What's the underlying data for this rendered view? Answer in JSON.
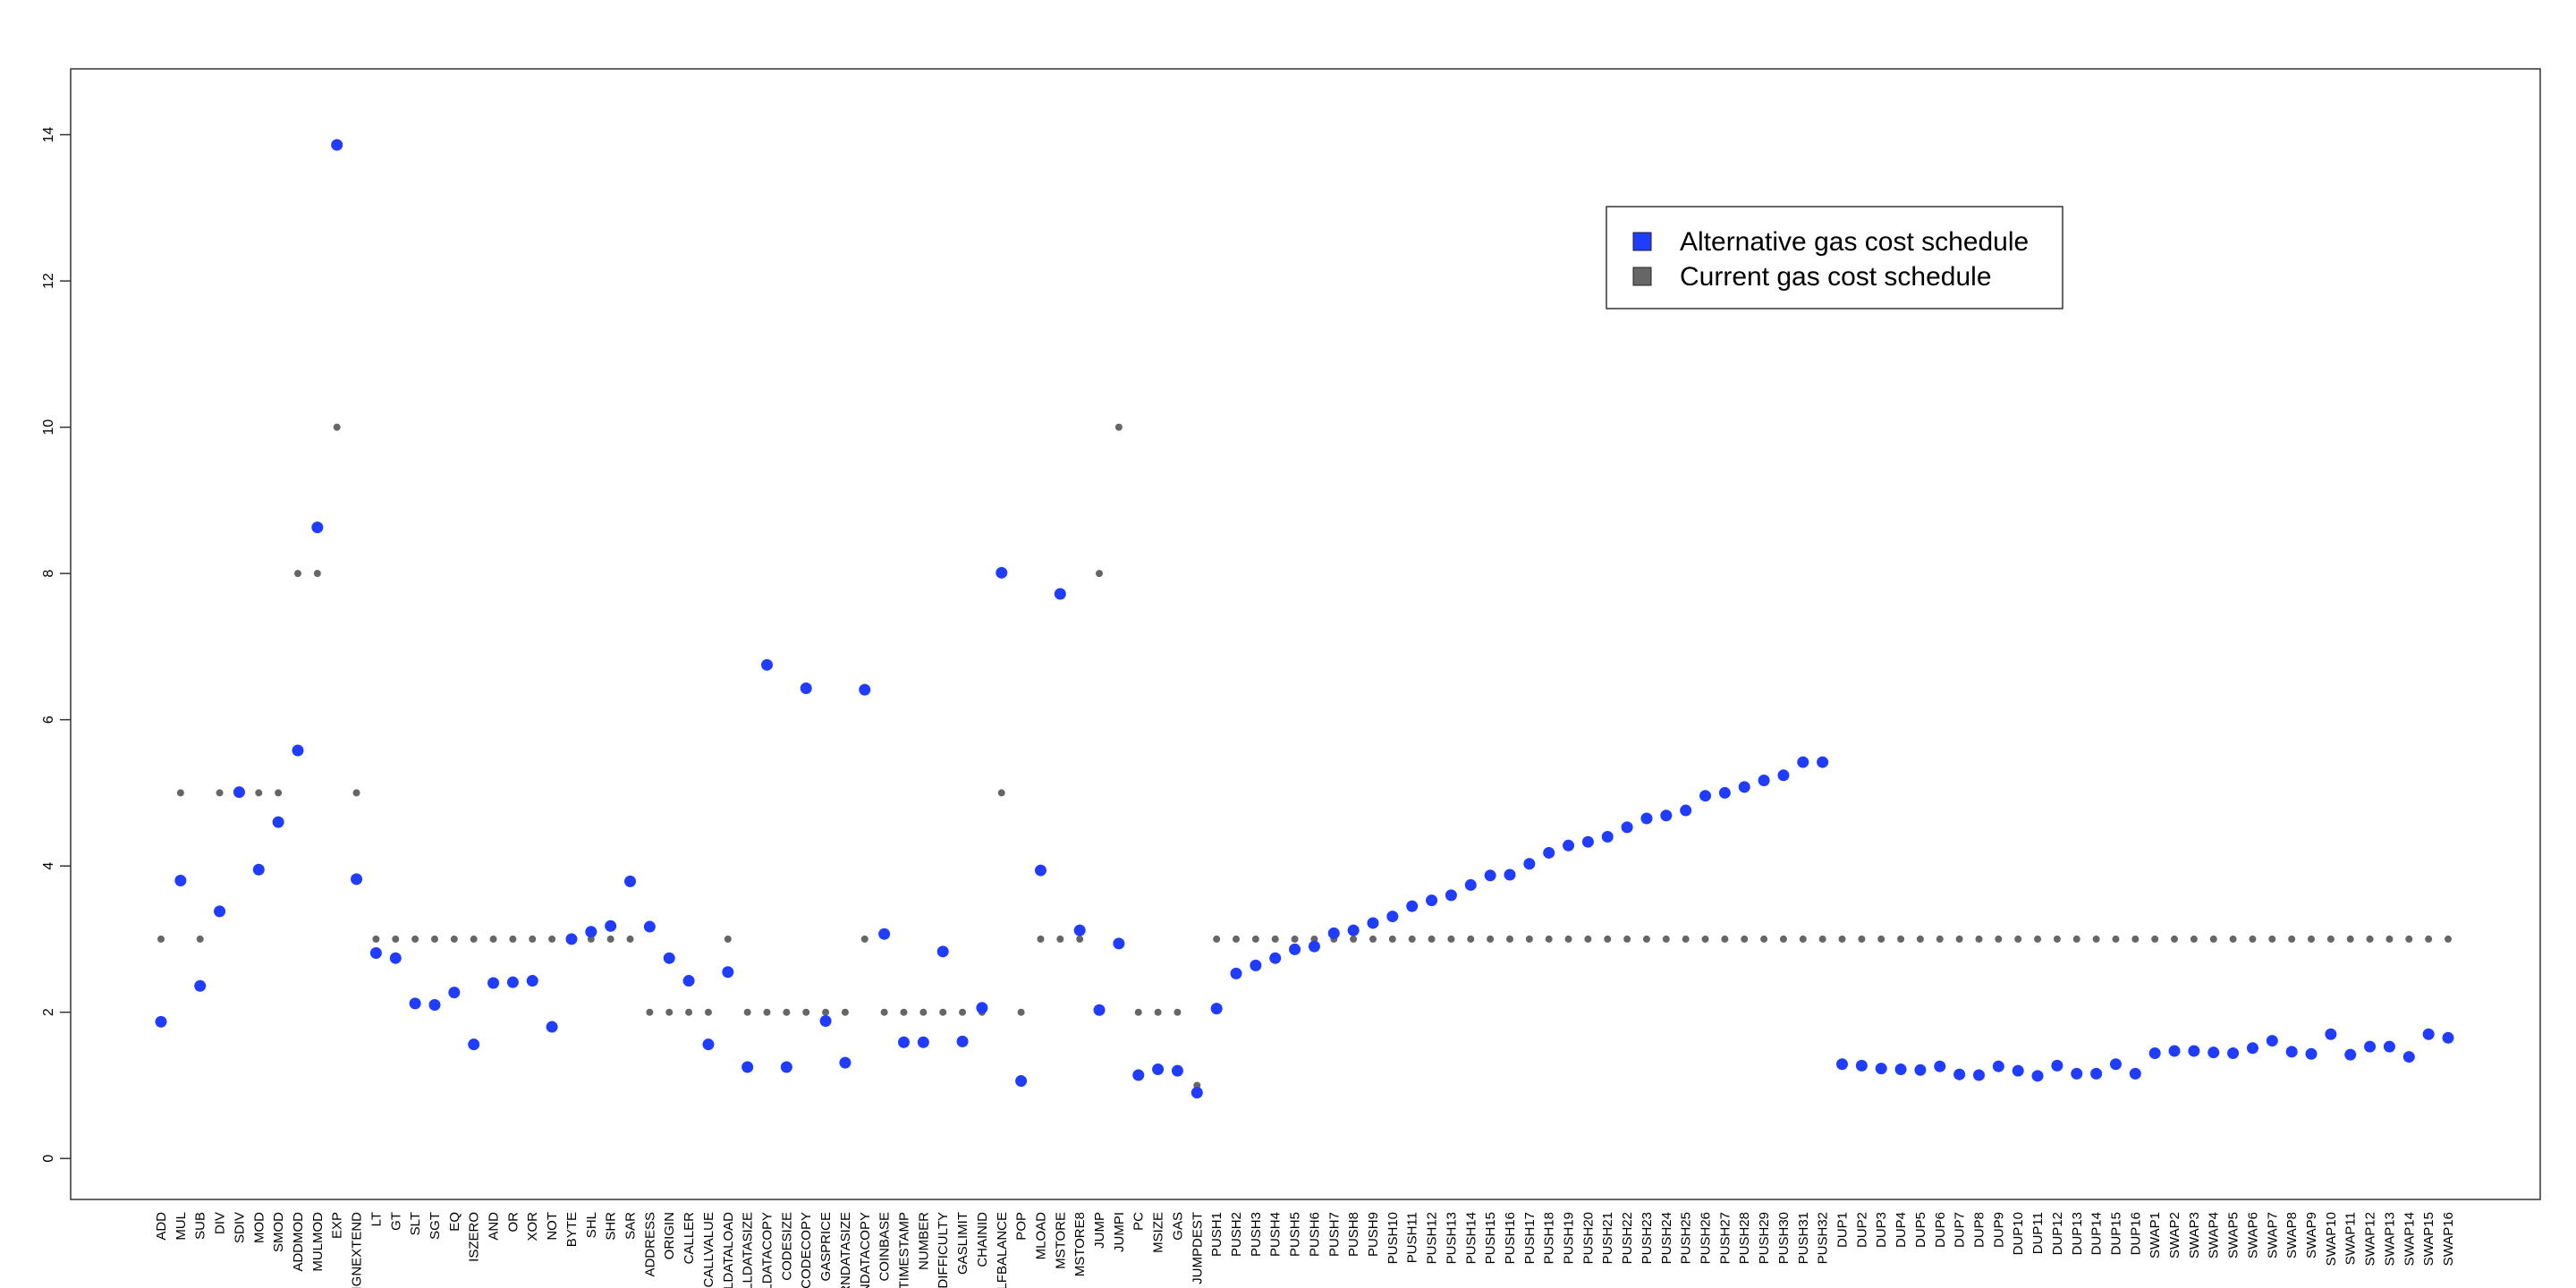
{
  "chart_data": {
    "type": "scatter",
    "categories": [
      "ADD",
      "MUL",
      "SUB",
      "DIV",
      "SDIV",
      "MOD",
      "SMOD",
      "ADDMOD",
      "MULMOD",
      "EXP",
      "SIGNEXTEND",
      "LT",
      "GT",
      "SLT",
      "SGT",
      "EQ",
      "ISZERO",
      "AND",
      "OR",
      "XOR",
      "NOT",
      "BYTE",
      "SHL",
      "SHR",
      "SAR",
      "ADDRESS",
      "ORIGIN",
      "CALLER",
      "CALLVALUE",
      "CALLDATALOAD",
      "CALLDATASIZE",
      "CALLDATACOPY",
      "CODESIZE",
      "CODECOPY",
      "GASPRICE",
      "RETURNDATASIZE",
      "RETURNDATACOPY",
      "COINBASE",
      "TIMESTAMP",
      "NUMBER",
      "DIFFICULTY",
      "GASLIMIT",
      "CHAINID",
      "SELFBALANCE",
      "POP",
      "MLOAD",
      "MSTORE",
      "MSTORE8",
      "JUMP",
      "JUMPI",
      "PC",
      "MSIZE",
      "GAS",
      "JUMPDEST",
      "PUSH1",
      "PUSH2",
      "PUSH3",
      "PUSH4",
      "PUSH5",
      "PUSH6",
      "PUSH7",
      "PUSH8",
      "PUSH9",
      "PUSH10",
      "PUSH11",
      "PUSH12",
      "PUSH13",
      "PUSH14",
      "PUSH15",
      "PUSH16",
      "PUSH17",
      "PUSH18",
      "PUSH19",
      "PUSH20",
      "PUSH21",
      "PUSH22",
      "PUSH23",
      "PUSH24",
      "PUSH25",
      "PUSH26",
      "PUSH27",
      "PUSH28",
      "PUSH29",
      "PUSH30",
      "PUSH31",
      "PUSH32",
      "DUP1",
      "DUP2",
      "DUP3",
      "DUP4",
      "DUP5",
      "DUP6",
      "DUP7",
      "DUP8",
      "DUP9",
      "DUP10",
      "DUP11",
      "DUP12",
      "DUP13",
      "DUP14",
      "DUP15",
      "DUP16",
      "SWAP1",
      "SWAP2",
      "SWAP3",
      "SWAP4",
      "SWAP5",
      "SWAP6",
      "SWAP7",
      "SWAP8",
      "SWAP9",
      "SWAP10",
      "SWAP11",
      "SWAP12",
      "SWAP13",
      "SWAP14",
      "SWAP15",
      "SWAP16"
    ],
    "series": [
      {
        "name": "Alternative gas cost schedule",
        "color": "#1f3cff",
        "values": [
          1.87,
          3.8,
          2.36,
          3.38,
          5.01,
          3.95,
          4.6,
          5.58,
          8.63,
          13.86,
          3.82,
          2.81,
          2.74,
          2.12,
          2.1,
          2.27,
          1.56,
          2.4,
          2.41,
          2.43,
          1.8,
          3.0,
          3.1,
          3.18,
          3.79,
          3.17,
          2.74,
          2.43,
          1.56,
          2.55,
          1.25,
          6.75,
          1.25,
          6.43,
          1.88,
          1.31,
          6.41,
          3.07,
          1.59,
          1.59,
          2.83,
          1.6,
          2.06,
          8.01,
          1.06,
          3.94,
          7.72,
          3.12,
          2.03,
          2.94,
          1.14,
          1.22,
          1.2,
          0.9,
          2.05,
          2.53,
          2.64,
          2.74,
          2.86,
          2.9,
          3.08,
          3.12,
          3.22,
          3.31,
          3.45,
          3.53,
          3.6,
          3.74,
          3.87,
          3.88,
          4.03,
          4.18,
          4.28,
          4.33,
          4.4,
          4.53,
          4.65,
          4.69,
          4.76,
          4.96,
          5.0,
          5.08,
          5.17,
          5.24,
          5.42,
          5.42,
          1.29,
          1.27,
          1.23,
          1.22,
          1.21,
          1.26,
          1.15,
          1.14,
          1.26,
          1.2,
          1.13,
          1.27,
          1.16,
          1.16,
          1.29,
          1.16,
          1.44,
          1.47,
          1.47,
          1.45,
          1.44,
          1.51,
          1.61,
          1.46,
          1.43,
          1.7,
          1.42,
          1.53,
          1.53,
          1.39,
          1.7,
          1.65
        ]
      },
      {
        "name": "Current gas cost schedule",
        "color": "#666666",
        "values": [
          3,
          5,
          3,
          5,
          5,
          5,
          5,
          8,
          8,
          10,
          5,
          3,
          3,
          3,
          3,
          3,
          3,
          3,
          3,
          3,
          3,
          3,
          3,
          3,
          3,
          2,
          2,
          2,
          2,
          3,
          2,
          2,
          2,
          2,
          2,
          2,
          3,
          2,
          2,
          2,
          2,
          2,
          2,
          5,
          2,
          3,
          3,
          3,
          8,
          10,
          2,
          2,
          2,
          1,
          3,
          3,
          3,
          3,
          3,
          3,
          3,
          3,
          3,
          3,
          3,
          3,
          3,
          3,
          3,
          3,
          3,
          3,
          3,
          3,
          3,
          3,
          3,
          3,
          3,
          3,
          3,
          3,
          3,
          3,
          3,
          3,
          3,
          3,
          3,
          3,
          3,
          3,
          3,
          3,
          3,
          3,
          3,
          3,
          3,
          3,
          3,
          3,
          3,
          3,
          3,
          3,
          3,
          3,
          3,
          3,
          3,
          3,
          3,
          3,
          3,
          3,
          3,
          3
        ]
      }
    ],
    "ylim": [
      -0.56,
      14.9
    ],
    "yticks": [
      0,
      2,
      4,
      6,
      8,
      10,
      12,
      14
    ],
    "legend": "top-right"
  }
}
